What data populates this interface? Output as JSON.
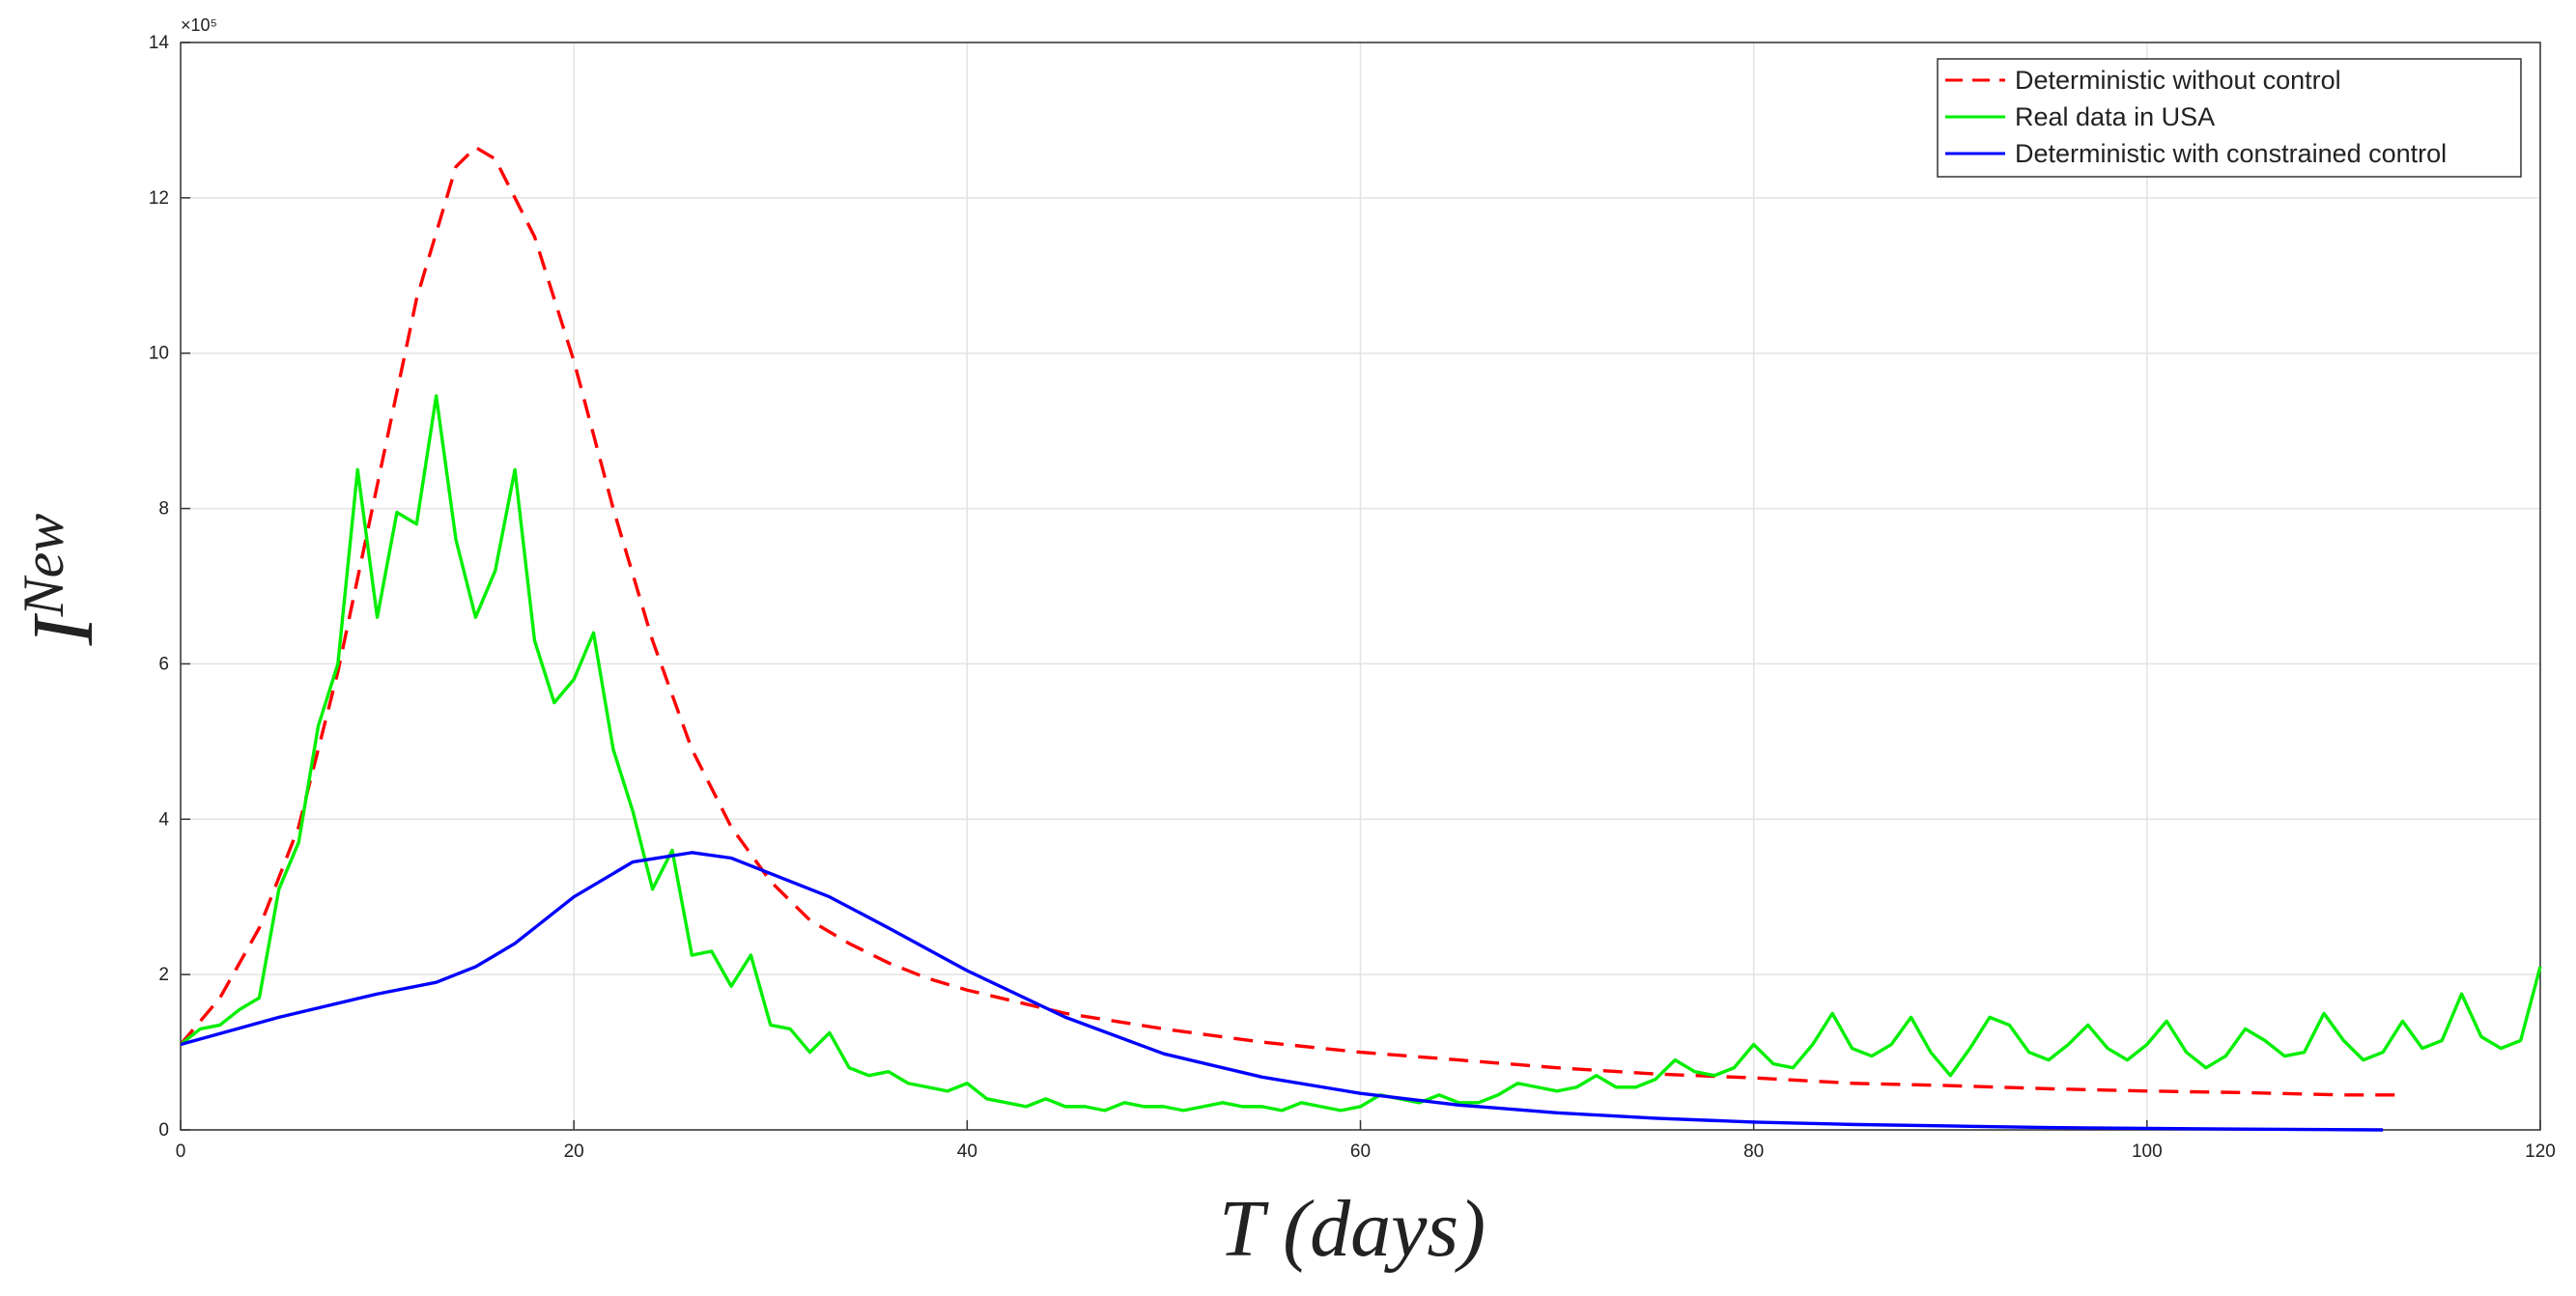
{
  "chart_data": {
    "type": "line",
    "xlabel": "T (days)",
    "ylabel": {
      "base": "I",
      "superscript": "New"
    },
    "y_exponent": "×10⁵",
    "xlim": [
      0,
      120
    ],
    "xticks": [
      0,
      20,
      40,
      60,
      80,
      100,
      120
    ],
    "ylim": [
      0,
      14
    ],
    "yticks": [
      0,
      2,
      4,
      6,
      8,
      10,
      12,
      14
    ],
    "grid": true,
    "legend": "upper right",
    "series": [
      {
        "name": "Deterministic without control",
        "color": "#ff0000",
        "dash": "dashed",
        "x": [
          0,
          2,
          4,
          6,
          8,
          10,
          12,
          14,
          15,
          16,
          18,
          20,
          22,
          24,
          26,
          28,
          30,
          32,
          34,
          36,
          38,
          40,
          45,
          50,
          55,
          60,
          65,
          70,
          75,
          80,
          85,
          90,
          95,
          100,
          105,
          110,
          113
        ],
        "values": [
          1.1,
          1.7,
          2.6,
          3.9,
          5.9,
          8.3,
          10.7,
          12.4,
          12.65,
          12.5,
          11.5,
          9.9,
          8.0,
          6.3,
          4.9,
          3.9,
          3.2,
          2.7,
          2.4,
          2.15,
          1.95,
          1.8,
          1.5,
          1.3,
          1.13,
          1.0,
          0.9,
          0.8,
          0.72,
          0.67,
          0.6,
          0.57,
          0.53,
          0.5,
          0.48,
          0.45,
          0.45
        ]
      },
      {
        "name": "Real data in USA",
        "color": "#00ee00",
        "dash": "solid",
        "x": [
          0,
          1,
          2,
          3,
          4,
          5,
          6,
          7,
          8,
          9,
          10,
          11,
          12,
          13,
          14,
          15,
          16,
          17,
          18,
          19,
          20,
          21,
          22,
          23,
          24,
          25,
          26,
          27,
          28,
          29,
          30,
          31,
          32,
          33,
          34,
          35,
          36,
          37,
          38,
          39,
          40,
          41,
          42,
          43,
          44,
          45,
          46,
          47,
          48,
          49,
          50,
          51,
          52,
          53,
          54,
          55,
          56,
          57,
          58,
          59,
          60,
          61,
          62,
          63,
          64,
          65,
          66,
          67,
          68,
          69,
          70,
          71,
          72,
          73,
          74,
          75,
          76,
          77,
          78,
          79,
          80,
          81,
          82,
          83,
          84,
          85,
          86,
          87,
          88,
          89,
          90,
          91,
          92,
          93,
          94,
          95,
          96,
          97,
          98,
          99,
          100,
          101,
          102,
          103,
          104,
          105,
          106,
          107,
          108,
          109,
          110,
          111,
          112,
          113,
          114,
          115,
          116,
          117,
          118,
          119,
          120
        ],
        "values": [
          1.1,
          1.3,
          1.35,
          1.55,
          1.7,
          3.1,
          3.7,
          5.2,
          6.0,
          8.5,
          6.6,
          7.95,
          7.8,
          9.45,
          7.6,
          6.6,
          7.2,
          8.5,
          6.3,
          5.5,
          5.8,
          6.4,
          4.9,
          4.1,
          3.1,
          3.6,
          2.25,
          2.3,
          1.85,
          2.25,
          1.35,
          1.3,
          1.0,
          1.25,
          0.8,
          0.7,
          0.75,
          0.6,
          0.55,
          0.5,
          0.6,
          0.4,
          0.35,
          0.3,
          0.4,
          0.3,
          0.3,
          0.25,
          0.35,
          0.3,
          0.3,
          0.25,
          0.3,
          0.35,
          0.3,
          0.3,
          0.25,
          0.35,
          0.3,
          0.25,
          0.3,
          0.45,
          0.4,
          0.35,
          0.45,
          0.35,
          0.35,
          0.45,
          0.6,
          0.55,
          0.5,
          0.55,
          0.7,
          0.55,
          0.55,
          0.65,
          0.9,
          0.75,
          0.7,
          0.8,
          1.1,
          0.85,
          0.8,
          1.1,
          1.5,
          1.05,
          0.95,
          1.1,
          1.45,
          1.0,
          0.7,
          1.05,
          1.45,
          1.35,
          1.0,
          0.9,
          1.1,
          1.35,
          1.05,
          0.9,
          1.1,
          1.4,
          1.0,
          0.8,
          0.95,
          1.3,
          1.15,
          0.95,
          1.0,
          1.5,
          1.15,
          0.9,
          1.0,
          1.4,
          1.05,
          1.15,
          1.75,
          1.2,
          1.05,
          1.15,
          2.1
        ]
      },
      {
        "name": "Deterministic with constrained control",
        "color": "#0000ff",
        "dash": "solid",
        "x": [
          0,
          5,
          10,
          13,
          15,
          17,
          20,
          23,
          26,
          28,
          30,
          33,
          36,
          40,
          45,
          50,
          55,
          60,
          65,
          70,
          75,
          80,
          85,
          90,
          95,
          100,
          105,
          112
        ],
        "values": [
          1.1,
          1.45,
          1.75,
          1.9,
          2.1,
          2.4,
          3.0,
          3.45,
          3.57,
          3.5,
          3.3,
          3.0,
          2.6,
          2.05,
          1.45,
          0.98,
          0.68,
          0.47,
          0.32,
          0.22,
          0.15,
          0.1,
          0.07,
          0.05,
          0.03,
          0.02,
          0.01,
          0
        ]
      }
    ]
  }
}
